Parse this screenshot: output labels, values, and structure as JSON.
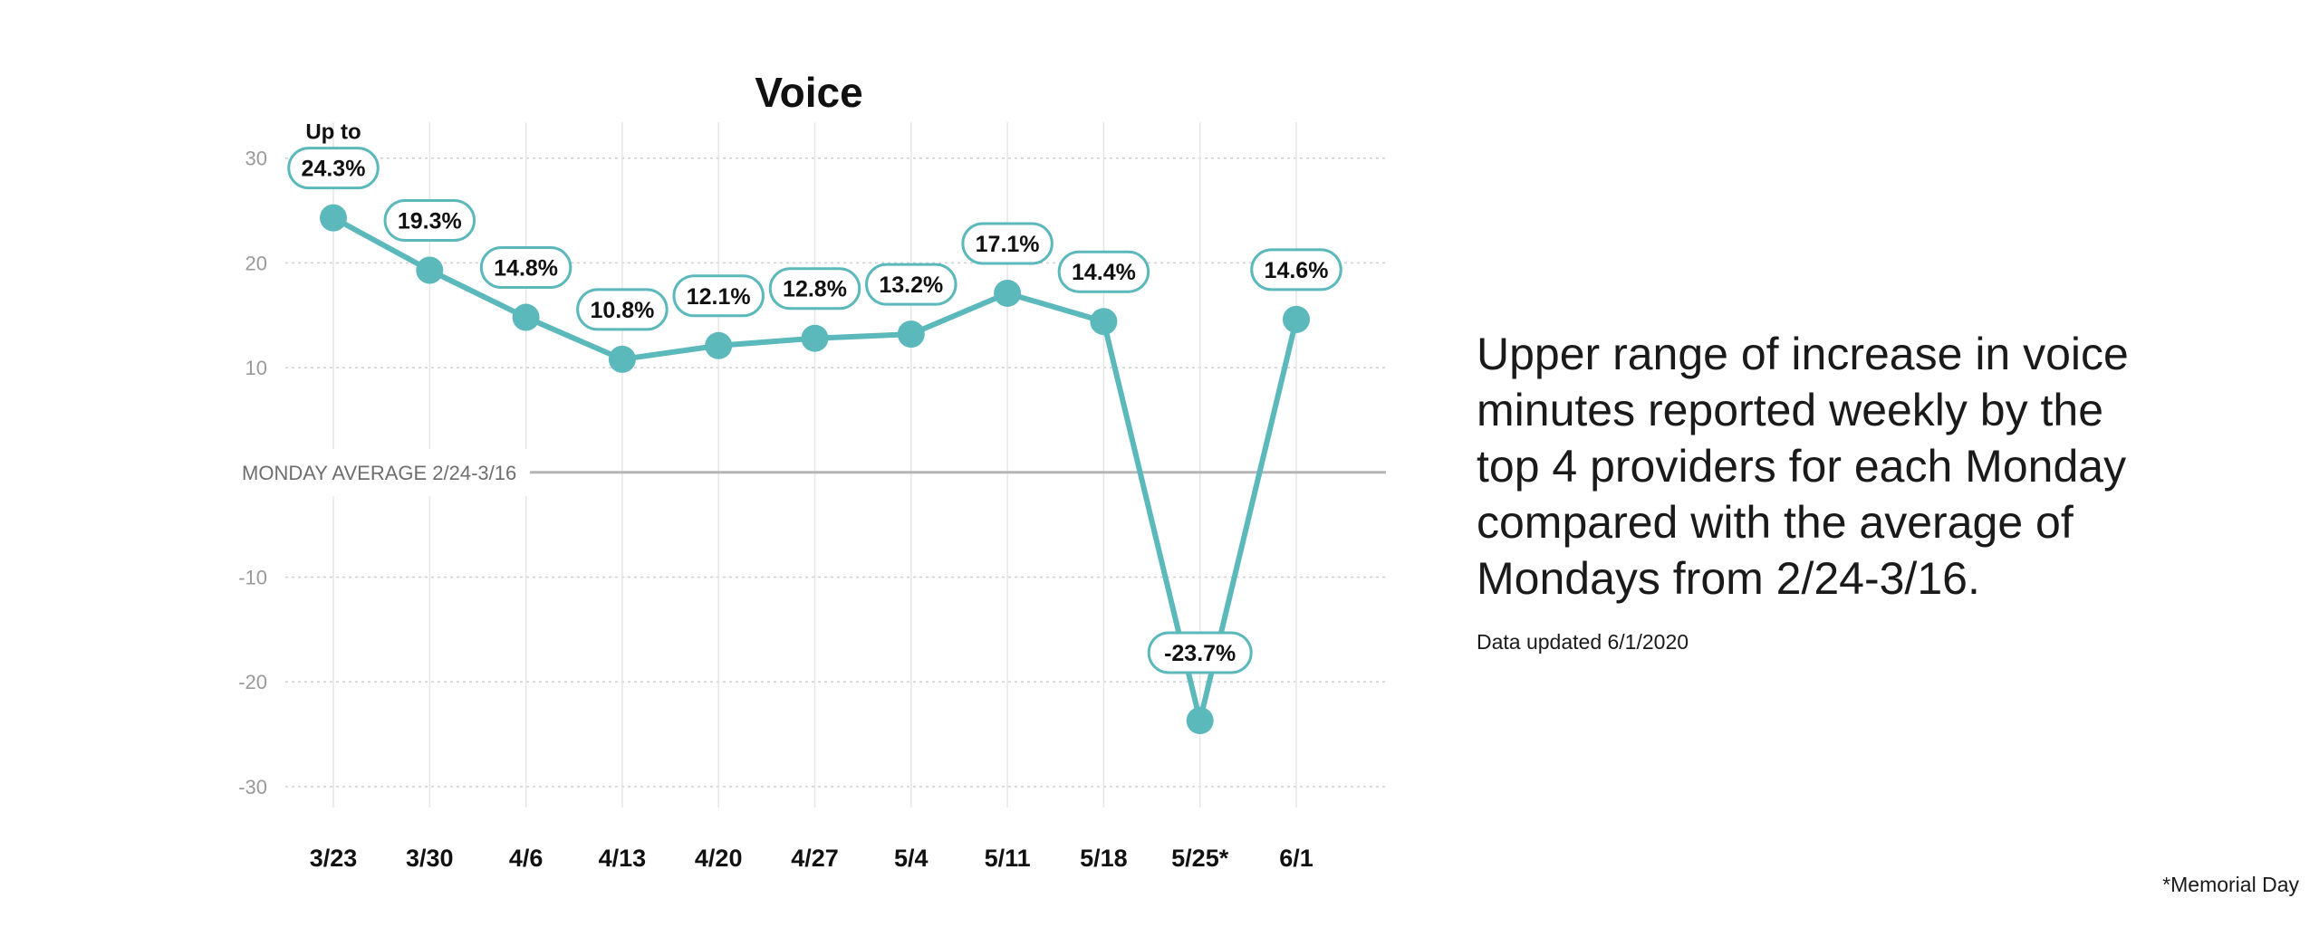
{
  "chart_data": {
    "type": "line",
    "title": "Voice",
    "categories": [
      "3/23",
      "3/30",
      "4/6",
      "4/13",
      "4/20",
      "4/27",
      "5/4",
      "5/11",
      "5/18",
      "5/25*",
      "6/1"
    ],
    "series": [
      {
        "values": [
          24.3,
          19.3,
          14.8,
          10.8,
          12.1,
          12.8,
          13.2,
          17.1,
          14.4,
          -23.7,
          14.6
        ],
        "labels": [
          "24.3%",
          "19.3%",
          "14.8%",
          "10.8%",
          "12.1%",
          "12.8%",
          "13.2%",
          "17.1%",
          "14.4%",
          "-23.7%",
          "14.6%"
        ],
        "color": "#5bb8bb"
      }
    ],
    "ylim": [
      -32,
      33
    ],
    "yticks": [
      "30",
      "20",
      "10",
      "-10",
      "-20",
      "-30"
    ],
    "ytick_values": [
      30,
      20,
      10,
      -10,
      -20,
      -30
    ],
    "baseline_label": "MONDAY AVERAGE 2/24-3/16",
    "first_point_prefix": "Up to",
    "grid": true
  },
  "description": "Upper range of increase in voice minutes reported weekly by the top 4 providers for each Monday compared with the average of Mondays from 2/24-3/16.",
  "updated": "Data updated 6/1/2020",
  "footnote": "*Memorial Day"
}
